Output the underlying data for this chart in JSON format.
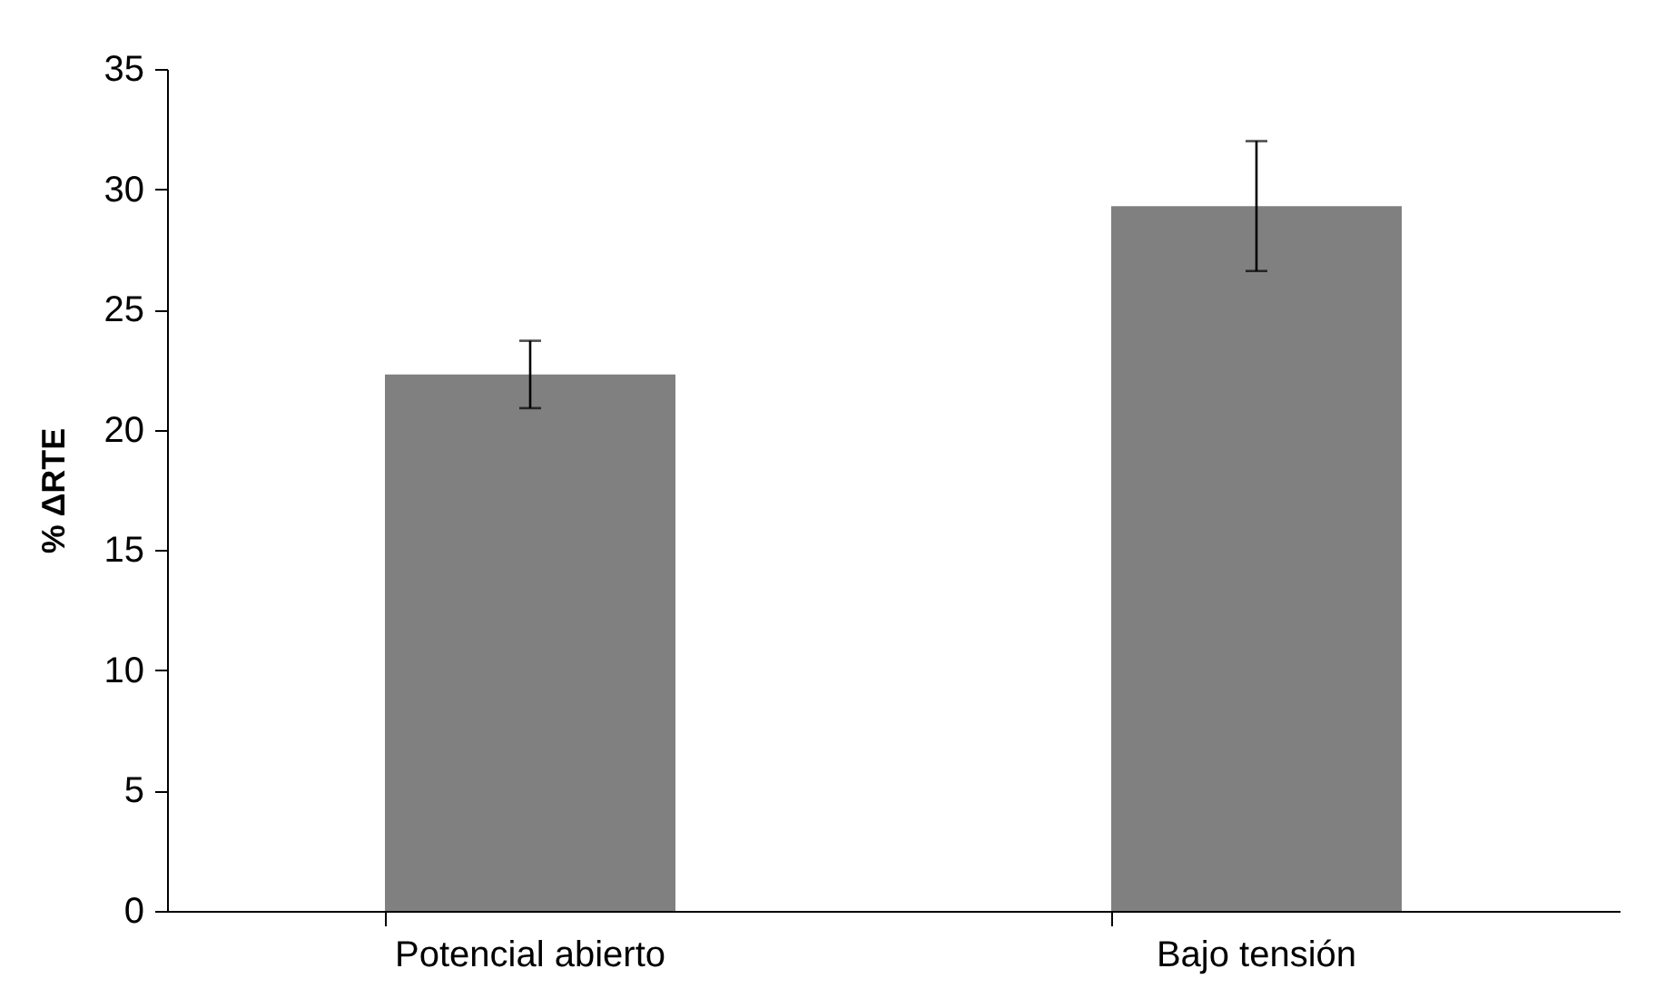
{
  "chart_data": {
    "type": "bar",
    "ylabel": "% ΔRTE",
    "categories": [
      "Potencial abierto",
      "Bajo tensión"
    ],
    "values": [
      22.3,
      29.3
    ],
    "errors": [
      1.4,
      2.7
    ],
    "color": "#808080",
    "ylim": [
      0,
      35
    ],
    "yticks": [
      0,
      5,
      10,
      15,
      20,
      25,
      30,
      35
    ],
    "grid": false
  }
}
